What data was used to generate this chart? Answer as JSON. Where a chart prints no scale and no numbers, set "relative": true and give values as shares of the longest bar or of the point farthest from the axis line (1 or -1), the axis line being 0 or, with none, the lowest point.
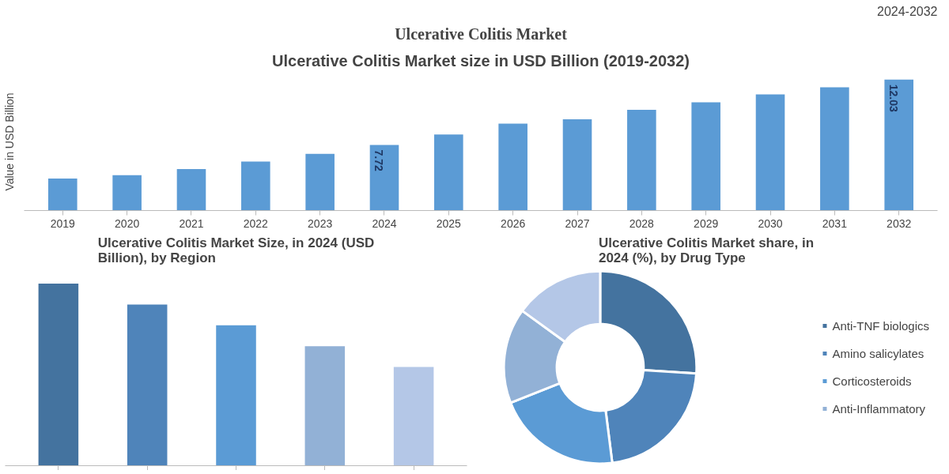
{
  "chart_data": [
    {
      "type": "bar",
      "title": "Ulcerative Colitis Market size in USD Billion (2019-2032)",
      "ylabel": "Value in USD Billion",
      "annotations": [
        "Ulcerative Colitis Market",
        "2024-2032"
      ],
      "categories": [
        "2019",
        "2020",
        "2021",
        "2022",
        "2023",
        "2024",
        "2025",
        "2026",
        "2027",
        "2028",
        "2029",
        "2030",
        "2031",
        "2032"
      ],
      "values": [
        5.51,
        5.73,
        6.13,
        6.63,
        7.14,
        7.72,
        8.41,
        9.13,
        9.41,
        10.04,
        10.54,
        11.05,
        11.52,
        12.03
      ],
      "value_labels": [
        null,
        null,
        null,
        null,
        null,
        "7.72",
        null,
        null,
        null,
        null,
        null,
        null,
        null,
        "12.03"
      ],
      "color": "#5b9bd5",
      "ylim": [
        3.4,
        12.03
      ],
      "tick_labels": "x",
      "grid": false
    },
    {
      "type": "bar",
      "title": "Ulcerative Colitis Market Size, in 2024 (USD Billion), by Region",
      "relative": true,
      "categories": [
        null,
        null,
        null,
        null,
        null
      ],
      "values": [
        1,
        0.885,
        0.771,
        0.656,
        0.542
      ],
      "colors": [
        "#44739f",
        "#4f84ba",
        "#5b9bd5",
        "#92b1d6",
        "#b4c7e7"
      ],
      "grid": false
    },
    {
      "type": "donut",
      "title": "Ulcerative Colitis Market share, in 2024 (%), by Drug Type",
      "categories": [
        "Anti-TNF biologics",
        "Amino salicylates",
        "Corticosteroids",
        "Anti-Inflammatory",
        null
      ],
      "values": [
        26,
        22,
        21,
        16,
        15
      ],
      "colors": [
        "#44739f",
        "#4f84ba",
        "#5b9bd5",
        "#92b1d6",
        "#b4c7e7"
      ],
      "legend": "right"
    }
  ]
}
